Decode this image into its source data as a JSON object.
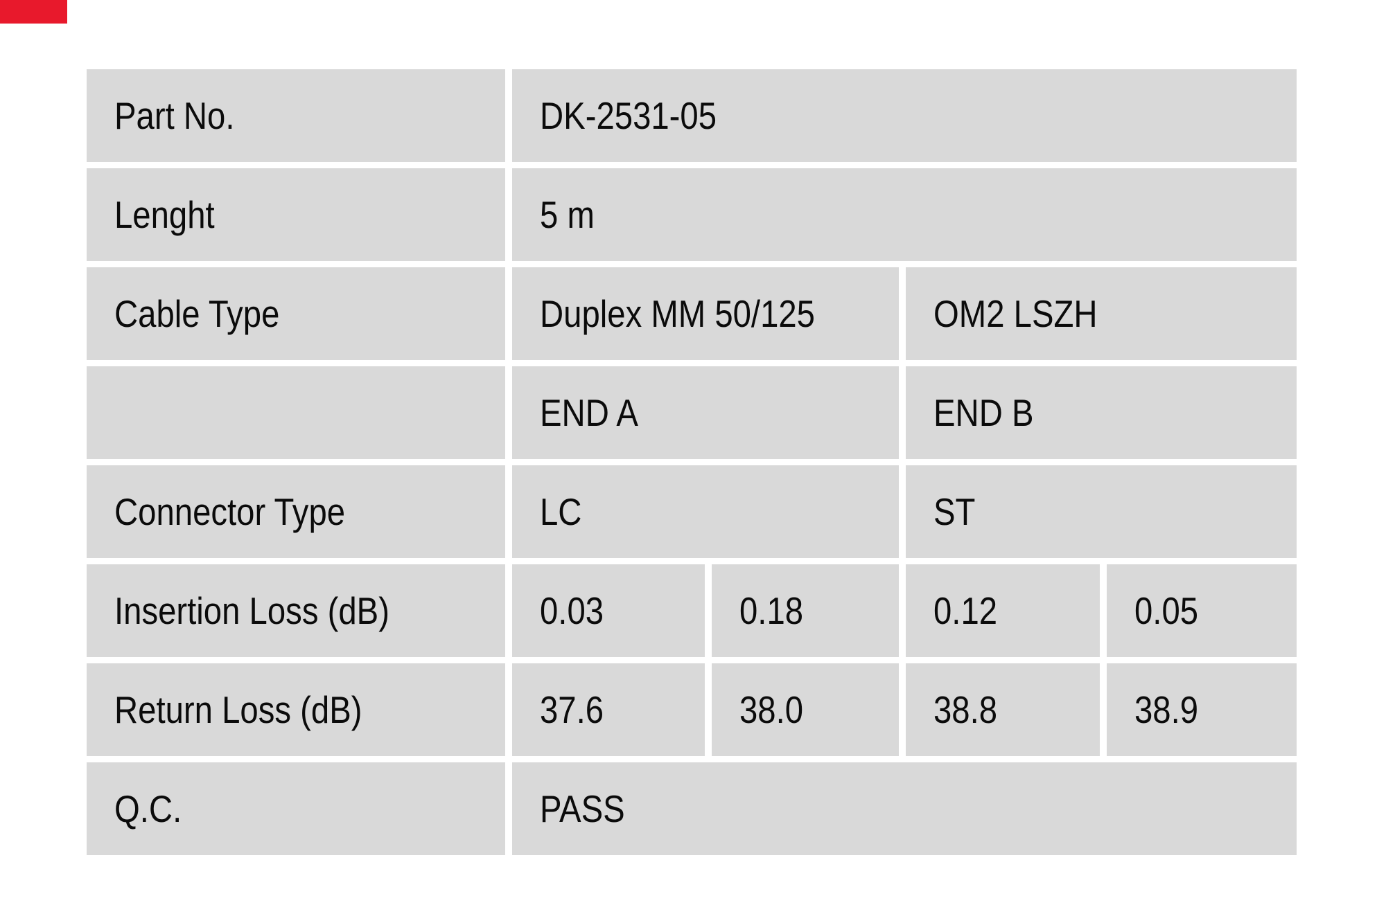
{
  "page": {
    "background": "#ffffff",
    "accent_bar_color": "#e8192c"
  },
  "table": {
    "cell_bg": "#d9d9d9",
    "text_color": "#0b0b0b",
    "rows": [
      {
        "label": "Part No.",
        "value": "DK-2531-05"
      },
      {
        "label": "Lenght",
        "value": "5 m"
      },
      {
        "label": "Cable Type",
        "value_a": "Duplex MM 50/125",
        "value_b": "OM2 LSZH"
      },
      {
        "label": "",
        "value_a": "END A",
        "value_b": "END B"
      },
      {
        "label": "Connector Type",
        "value_a": "LC",
        "value_b": "ST"
      },
      {
        "label": "Insertion Loss (dB)",
        "values": [
          "0.03",
          "0.18",
          "0.12",
          "0.05"
        ]
      },
      {
        "label": "Return Loss (dB)",
        "values": [
          "37.6",
          "38.0",
          "38.8",
          "38.9"
        ]
      },
      {
        "label": "Q.C.",
        "value": "PASS"
      }
    ]
  }
}
